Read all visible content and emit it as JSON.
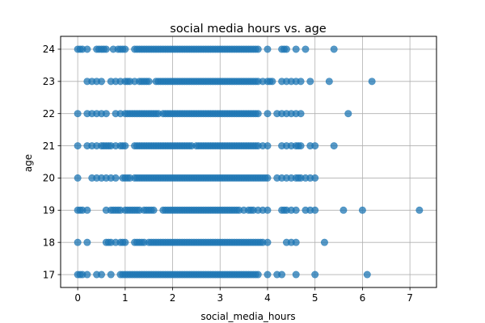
{
  "chart_data": {
    "type": "scatter",
    "title": "social media hours vs. age",
    "xlabel": "social_media_hours",
    "ylabel": "age",
    "xlim": [
      -0.36,
      7.56
    ],
    "ylim": [
      16.6,
      24.4
    ],
    "xticks": [
      0,
      1,
      2,
      3,
      4,
      5,
      6,
      7
    ],
    "yticks": [
      17,
      18,
      19,
      20,
      21,
      22,
      23,
      24
    ],
    "grid": true,
    "colors": {
      "marker": "#1f77b4",
      "grid": "#b0b0b0"
    },
    "marker_alpha": 0.75,
    "series": [
      {
        "age": 24,
        "x": [
          0.0,
          0.05,
          0.1,
          0.2,
          0.4,
          0.45,
          0.5,
          0.55,
          0.6,
          0.75,
          0.85,
          0.9,
          0.95,
          1.0,
          1.2,
          1.25,
          1.3,
          1.35,
          1.4,
          1.45,
          1.5,
          1.55,
          1.6,
          1.65,
          1.7,
          1.75,
          1.8,
          1.85,
          1.9,
          1.95,
          2.0,
          2.05,
          2.1,
          2.15,
          2.2,
          2.25,
          2.3,
          2.35,
          2.4,
          2.45,
          2.5,
          2.55,
          2.6,
          2.65,
          2.7,
          2.75,
          2.8,
          2.85,
          2.9,
          2.95,
          3.0,
          3.05,
          3.1,
          3.15,
          3.2,
          3.25,
          3.3,
          3.35,
          3.4,
          3.45,
          3.5,
          3.55,
          3.6,
          3.65,
          3.7,
          3.75,
          3.8,
          4.0,
          4.3,
          4.35,
          4.4,
          4.6,
          4.8,
          5.4
        ]
      },
      {
        "age": 23,
        "x": [
          0.2,
          0.3,
          0.4,
          0.5,
          0.7,
          0.8,
          0.9,
          1.0,
          1.05,
          1.1,
          1.2,
          1.3,
          1.35,
          1.4,
          1.45,
          1.5,
          1.65,
          1.7,
          1.75,
          1.8,
          1.85,
          1.9,
          1.95,
          2.0,
          2.05,
          2.1,
          2.15,
          2.2,
          2.25,
          2.3,
          2.35,
          2.4,
          2.45,
          2.5,
          2.55,
          2.6,
          2.65,
          2.7,
          2.75,
          2.8,
          2.85,
          2.9,
          2.95,
          3.0,
          3.05,
          3.1,
          3.15,
          3.2,
          3.25,
          3.3,
          3.35,
          3.4,
          3.45,
          3.5,
          3.55,
          3.6,
          3.65,
          3.7,
          3.75,
          3.8,
          3.9,
          4.0,
          4.05,
          4.1,
          4.3,
          4.4,
          4.5,
          4.6,
          4.7,
          4.9,
          5.3,
          6.2
        ]
      },
      {
        "age": 22,
        "x": [
          0.0,
          0.2,
          0.3,
          0.4,
          0.5,
          0.6,
          0.8,
          0.9,
          1.0,
          1.05,
          1.1,
          1.15,
          1.2,
          1.25,
          1.3,
          1.35,
          1.4,
          1.45,
          1.5,
          1.55,
          1.6,
          1.65,
          1.7,
          1.8,
          1.85,
          1.9,
          1.95,
          2.0,
          2.05,
          2.1,
          2.15,
          2.2,
          2.25,
          2.3,
          2.35,
          2.4,
          2.45,
          2.5,
          2.55,
          2.6,
          2.65,
          2.7,
          2.75,
          2.8,
          2.85,
          2.9,
          2.95,
          3.0,
          3.05,
          3.1,
          3.15,
          3.2,
          3.25,
          3.3,
          3.35,
          3.4,
          3.45,
          3.5,
          3.55,
          3.6,
          3.65,
          3.7,
          3.75,
          3.8,
          4.0,
          4.2,
          4.3,
          4.4,
          4.5,
          4.6,
          4.7,
          5.7
        ]
      },
      {
        "age": 21,
        "x": [
          0.0,
          0.2,
          0.3,
          0.4,
          0.5,
          0.55,
          0.6,
          0.65,
          0.7,
          0.8,
          0.9,
          0.95,
          1.0,
          1.2,
          1.25,
          1.3,
          1.35,
          1.4,
          1.45,
          1.5,
          1.55,
          1.6,
          1.65,
          1.7,
          1.75,
          1.8,
          1.85,
          1.9,
          1.95,
          2.0,
          2.05,
          2.1,
          2.15,
          2.2,
          2.25,
          2.3,
          2.35,
          2.4,
          2.5,
          2.55,
          2.6,
          2.65,
          2.7,
          2.75,
          2.8,
          2.85,
          2.9,
          2.95,
          3.0,
          3.05,
          3.1,
          3.15,
          3.2,
          3.25,
          3.3,
          3.35,
          3.4,
          3.45,
          3.5,
          3.55,
          3.6,
          3.65,
          3.7,
          3.75,
          3.8,
          3.9,
          4.0,
          4.3,
          4.4,
          4.5,
          4.6,
          4.65,
          4.7,
          4.9,
          5.0,
          5.4
        ]
      },
      {
        "age": 20,
        "x": [
          0.0,
          0.3,
          0.4,
          0.5,
          0.6,
          0.7,
          0.8,
          0.95,
          1.0,
          1.05,
          1.1,
          1.2,
          1.25,
          1.3,
          1.35,
          1.4,
          1.45,
          1.5,
          1.55,
          1.6,
          1.65,
          1.7,
          1.75,
          1.8,
          1.85,
          1.9,
          1.95,
          2.0,
          2.05,
          2.1,
          2.15,
          2.2,
          2.25,
          2.3,
          2.35,
          2.4,
          2.45,
          2.5,
          2.55,
          2.6,
          2.65,
          2.7,
          2.75,
          2.8,
          2.85,
          2.9,
          2.95,
          3.0,
          3.05,
          3.1,
          3.15,
          3.2,
          3.25,
          3.3,
          3.35,
          3.4,
          3.45,
          3.5,
          3.55,
          3.6,
          3.65,
          3.7,
          3.75,
          3.8,
          3.85,
          3.9,
          3.95,
          4.0,
          4.2,
          4.3,
          4.4,
          4.5,
          4.6,
          4.65,
          4.7,
          4.8,
          4.9,
          5.0
        ]
      },
      {
        "age": 19,
        "x": [
          0.0,
          0.05,
          0.1,
          0.2,
          0.6,
          0.7,
          0.75,
          0.8,
          0.85,
          0.9,
          1.0,
          1.05,
          1.1,
          1.15,
          1.2,
          1.25,
          1.3,
          1.4,
          1.45,
          1.5,
          1.55,
          1.6,
          1.8,
          1.85,
          1.9,
          1.95,
          2.0,
          2.05,
          2.1,
          2.15,
          2.2,
          2.25,
          2.3,
          2.35,
          2.4,
          2.45,
          2.5,
          2.55,
          2.6,
          2.65,
          2.7,
          2.75,
          2.8,
          2.85,
          2.9,
          2.95,
          3.0,
          3.05,
          3.1,
          3.15,
          3.2,
          3.25,
          3.3,
          3.35,
          3.4,
          3.5,
          3.6,
          3.65,
          3.7,
          3.8,
          3.9,
          4.0,
          4.3,
          4.35,
          4.4,
          4.5,
          4.6,
          4.8,
          4.9,
          5.0,
          5.6,
          6.0,
          7.2
        ]
      },
      {
        "age": 18,
        "x": [
          0.0,
          0.2,
          0.6,
          0.65,
          0.7,
          0.8,
          0.9,
          0.95,
          1.0,
          1.2,
          1.25,
          1.3,
          1.35,
          1.4,
          1.5,
          1.55,
          1.6,
          1.65,
          1.7,
          1.75,
          1.8,
          1.85,
          1.9,
          1.95,
          2.0,
          2.05,
          2.1,
          2.15,
          2.2,
          2.25,
          2.3,
          2.35,
          2.4,
          2.45,
          2.5,
          2.55,
          2.6,
          2.65,
          2.7,
          2.75,
          2.8,
          2.85,
          2.9,
          2.95,
          3.0,
          3.05,
          3.1,
          3.15,
          3.2,
          3.25,
          3.3,
          3.35,
          3.4,
          3.45,
          3.5,
          3.55,
          3.6,
          3.65,
          3.7,
          3.75,
          3.8,
          3.85,
          3.9,
          4.0,
          4.4,
          4.5,
          4.6,
          5.2
        ]
      },
      {
        "age": 17,
        "x": [
          0.0,
          0.05,
          0.1,
          0.2,
          0.4,
          0.5,
          0.7,
          0.9,
          0.95,
          1.0,
          1.05,
          1.1,
          1.15,
          1.2,
          1.25,
          1.3,
          1.35,
          1.4,
          1.45,
          1.5,
          1.55,
          1.6,
          1.65,
          1.7,
          1.75,
          1.8,
          1.85,
          1.9,
          1.95,
          2.0,
          2.05,
          2.1,
          2.15,
          2.2,
          2.25,
          2.3,
          2.35,
          2.4,
          2.45,
          2.5,
          2.55,
          2.6,
          2.65,
          2.7,
          2.75,
          2.8,
          2.85,
          2.9,
          2.95,
          3.0,
          3.05,
          3.1,
          3.15,
          3.2,
          3.25,
          3.3,
          3.35,
          3.4,
          3.45,
          3.5,
          3.55,
          3.6,
          3.65,
          3.7,
          3.75,
          3.8,
          4.0,
          4.2,
          4.3,
          4.6,
          5.0,
          6.1
        ]
      }
    ]
  }
}
